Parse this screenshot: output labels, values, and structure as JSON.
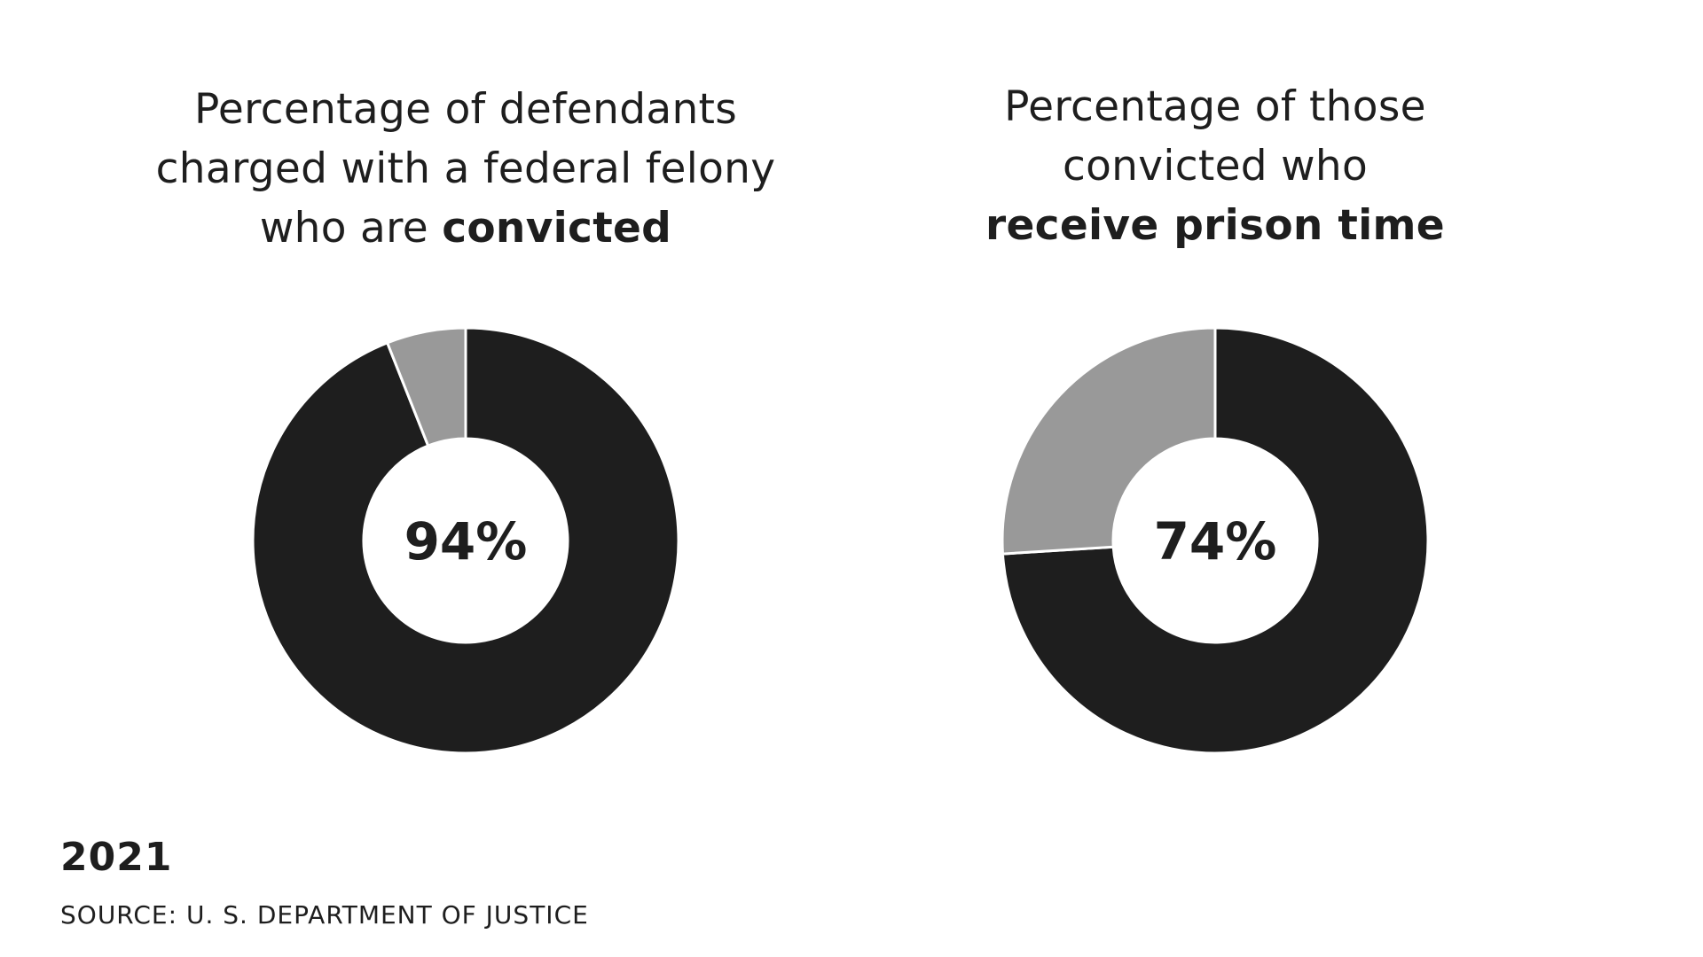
{
  "chart_data": [
    {
      "type": "pie",
      "title_lines": [
        [
          {
            "text": "Percentage of defendants",
            "bold": false
          }
        ],
        [
          {
            "text": "charged with a federal felony",
            "bold": false
          }
        ],
        [
          {
            "text": "who are ",
            "bold": false
          },
          {
            "text": "convicted",
            "bold": true
          }
        ]
      ],
      "center_label": "94%",
      "slices": [
        {
          "value": 94,
          "color": "#1e1e1e"
        },
        {
          "value": 6,
          "color": "#999999"
        }
      ]
    },
    {
      "type": "pie",
      "title_lines": [
        [
          {
            "text": "Percentage of those",
            "bold": false
          }
        ],
        [
          {
            "text": "convicted who",
            "bold": false
          }
        ],
        [
          {
            "text": "receive prison time",
            "bold": true
          }
        ]
      ],
      "center_label": "74%",
      "slices": [
        {
          "value": 74,
          "color": "#1e1e1e"
        },
        {
          "value": 26,
          "color": "#999999"
        }
      ]
    }
  ],
  "footer": {
    "year": "2021",
    "source": "SOURCE: U. S. DEPARTMENT OF JUSTICE"
  }
}
